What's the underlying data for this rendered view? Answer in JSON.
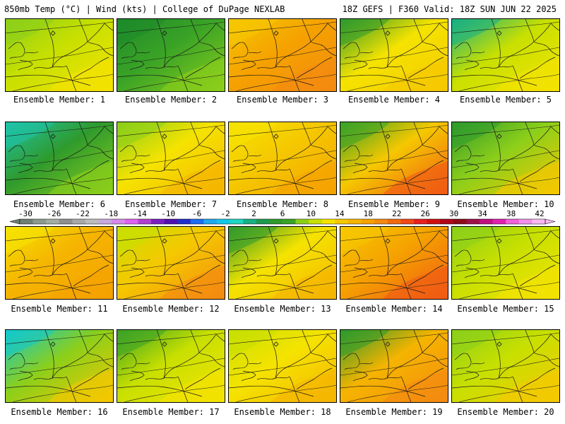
{
  "header": {
    "left": "850mb Temp (°C) | Wind (kts) | College of DuPage NEXLAB",
    "right": "18Z GEFS | F360 Valid: 18Z SUN JUN 22 2025"
  },
  "panels": [
    {
      "label": "Ensemble Member: 1",
      "base": "#c8e000",
      "warm": "#f5e300",
      "cool": "#8ccf1a"
    },
    {
      "label": "Ensemble Member: 2",
      "base": "#3aa326",
      "warm": "#8ccf1a",
      "cool": "#1d8a2a"
    },
    {
      "label": "Ensemble Member: 3",
      "base": "#f5a200",
      "warm": "#f48a10",
      "cool": "#f5c800"
    },
    {
      "label": "Ensemble Member: 4",
      "base": "#f5e300",
      "warm": "#f5c800",
      "cool": "#2f9a2c"
    },
    {
      "label": "Ensemble Member: 5",
      "base": "#c8e000",
      "warm": "#f5e300",
      "cool": "#18b084"
    },
    {
      "label": "Ensemble Member: 6",
      "base": "#2f9a2c",
      "warm": "#8ccf1a",
      "cool": "#1fc3a8"
    },
    {
      "label": "Ensemble Member: 7",
      "base": "#f5e300",
      "warm": "#f5b400",
      "cool": "#8ccf1a"
    },
    {
      "label": "Ensemble Member: 8",
      "base": "#f5c800",
      "warm": "#f5a200",
      "cool": "#f5e300"
    },
    {
      "label": "Ensemble Member: 9",
      "base": "#f5c800",
      "warm": "#f05a14",
      "cool": "#3aa326"
    },
    {
      "label": "Ensemble Member: 10",
      "base": "#8ccf1a",
      "warm": "#f5c800",
      "cool": "#2f9a2c"
    },
    {
      "label": "Ensemble Member: 11",
      "base": "#f5b400",
      "warm": "#f5a200",
      "cool": "#f5e300"
    },
    {
      "label": "Ensemble Member: 12",
      "base": "#f5c800",
      "warm": "#f48a10",
      "cool": "#c8e000"
    },
    {
      "label": "Ensemble Member: 13",
      "base": "#f5e300",
      "warm": "#f5b400",
      "cool": "#2f9a2c"
    },
    {
      "label": "Ensemble Member: 14",
      "base": "#f5a200",
      "warm": "#f05a14",
      "cool": "#f5c800"
    },
    {
      "label": "Ensemble Member: 15",
      "base": "#c8e000",
      "warm": "#f5e300",
      "cool": "#8ccf1a"
    },
    {
      "label": "Ensemble Member: 16",
      "base": "#8ccf1a",
      "warm": "#f5c800",
      "cool": "#12c8cc"
    },
    {
      "label": "Ensemble Member: 17",
      "base": "#c8e000",
      "warm": "#f5e300",
      "cool": "#3aa326"
    },
    {
      "label": "Ensemble Member: 18",
      "base": "#f5e300",
      "warm": "#f5b400",
      "cool": "#c8e000"
    },
    {
      "label": "Ensemble Member: 19",
      "base": "#f5b400",
      "warm": "#f48a10",
      "cool": "#2f9a2c"
    },
    {
      "label": "Ensemble Member: 20",
      "base": "#c8e000",
      "warm": "#f5c800",
      "cool": "#8ccf1a"
    }
  ],
  "colorbar": {
    "labels": [
      "-30",
      "-26",
      "-22",
      "-18",
      "-14",
      "-10",
      "-6",
      "-2",
      "2",
      "6",
      "10",
      "14",
      "18",
      "22",
      "26",
      "30",
      "34",
      "38",
      "42"
    ],
    "colors": [
      "#6e7f74",
      "#8c9a8e",
      "#a3ada3",
      "#8f8f8f",
      "#a8a8a8",
      "#bcbcbc",
      "#c8a8dc",
      "#d68ae8",
      "#e060f0",
      "#b040d0",
      "#7a20c0",
      "#5010b0",
      "#2030c8",
      "#1c6cf0",
      "#20a8f0",
      "#12c8e8",
      "#1fd6c0",
      "#18b084",
      "#1d9a50",
      "#2f9a2c",
      "#3aa326",
      "#8ccf1a",
      "#c8e000",
      "#f5e300",
      "#f5c800",
      "#f5b400",
      "#f5a200",
      "#f48a10",
      "#f06a10",
      "#f04818",
      "#e82020",
      "#d01010",
      "#b00818",
      "#8c0c18",
      "#a01048",
      "#c01080",
      "#e020b0",
      "#f060d8",
      "#f090e8",
      "#f8b8f0"
    ]
  }
}
